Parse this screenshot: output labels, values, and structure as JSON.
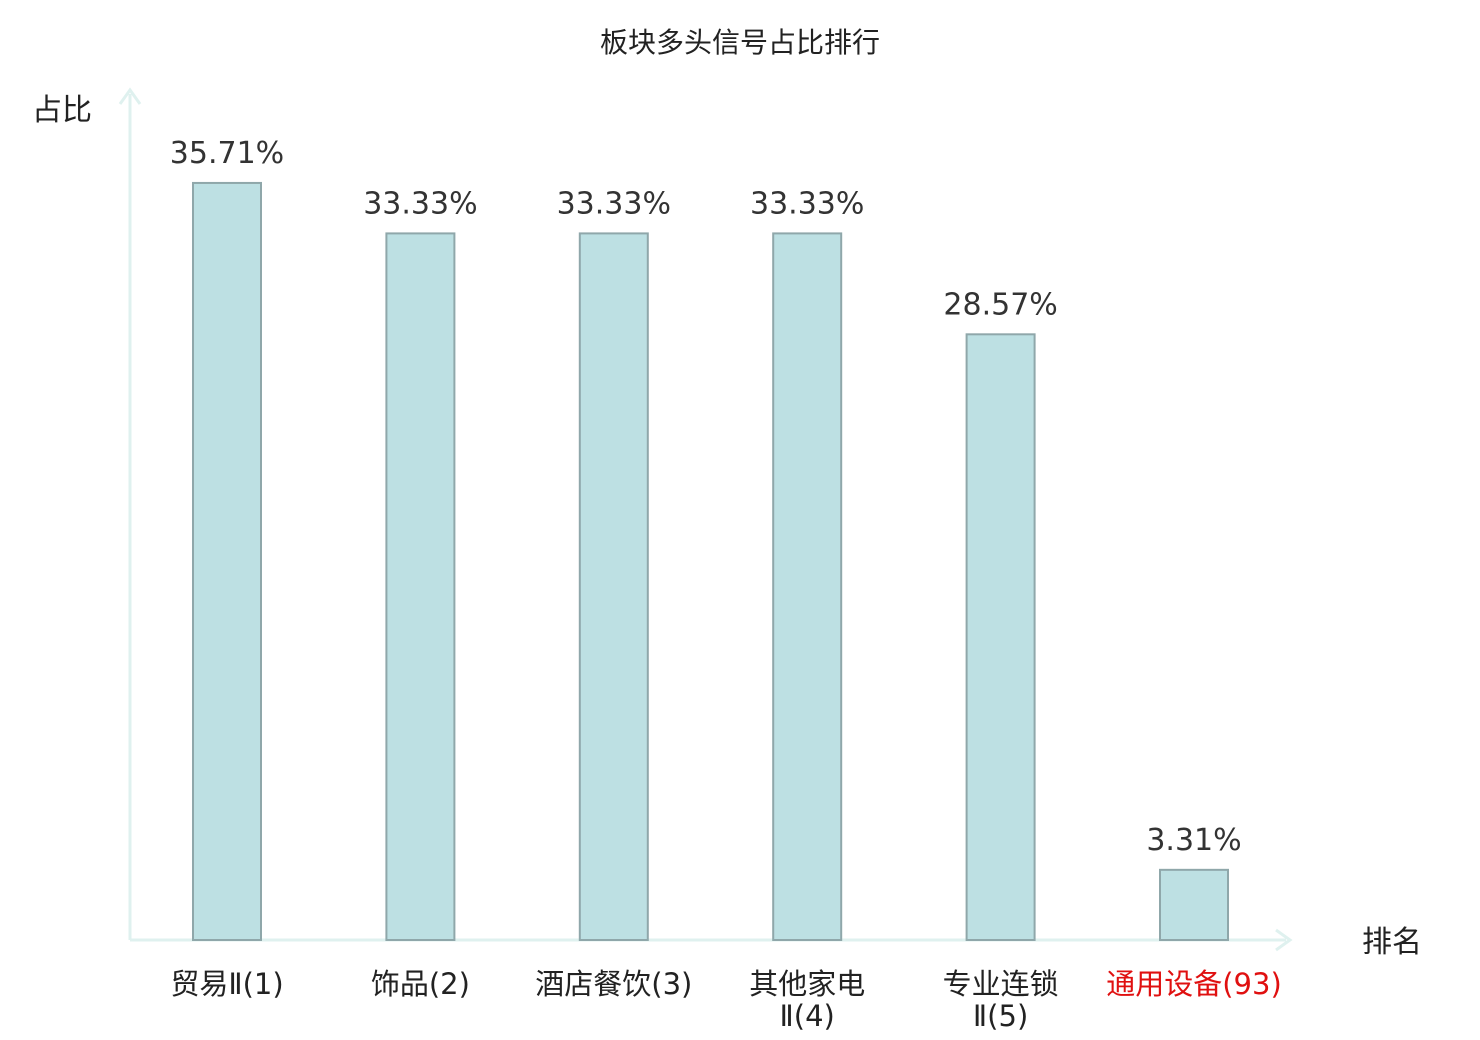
{
  "chart_data": {
    "type": "bar",
    "title": "板块多头信号占比排行",
    "xlabel": "排名",
    "ylabel": "占比",
    "categories": [
      [
        "贸易Ⅱ(1)"
      ],
      [
        "饰品(2)"
      ],
      [
        "酒店餐饮(3)"
      ],
      [
        "其他家电",
        "Ⅱ(4)"
      ],
      [
        "专业连锁",
        "Ⅱ(5)"
      ],
      [
        "通用设备(93)"
      ]
    ],
    "values": [
      35.71,
      33.33,
      33.33,
      33.33,
      28.57,
      3.31
    ],
    "value_labels": [
      "35.71%",
      "33.33%",
      "33.33%",
      "33.33%",
      "28.57%",
      "3.31%"
    ],
    "highlight_index": 5,
    "ylim": [
      0,
      40
    ],
    "grid": false,
    "legend": "none",
    "colors": {
      "bar_fill": "#bde0e3",
      "bar_stroke": "#8fa7aa",
      "axis": "#dff1ef",
      "text": "#222222",
      "highlight_text": "#e01010"
    }
  }
}
